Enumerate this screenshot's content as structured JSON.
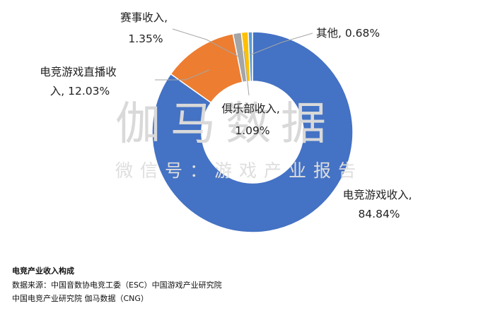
{
  "chart_data": {
    "type": "donut",
    "slices": [
      {
        "name": "电竞游戏收入",
        "value": 84.84,
        "label_lines": [
          "电竞游戏收入,",
          "84.84%"
        ],
        "color": "#4472C4"
      },
      {
        "name": "电竞游戏直播收入",
        "value": 12.03,
        "label_lines": [
          "电竞游戏直播收",
          "入, 12.03%"
        ],
        "color": "#ED7D31"
      },
      {
        "name": "赛事收入",
        "value": 1.35,
        "label_lines": [
          "赛事收入,",
          "1.35%"
        ],
        "color": "#A5A5A5"
      },
      {
        "name": "俱乐部收入",
        "value": 1.09,
        "label_lines": [
          "俱乐部收入,",
          "1.09%"
        ],
        "color": "#FFC000"
      },
      {
        "name": "其他",
        "value": 0.68,
        "label_lines": [
          "其他, 0.68%"
        ],
        "color": "#5B9BD5"
      }
    ],
    "legend": "none"
  },
  "watermark": {
    "line1": "伽马数据",
    "line2": "微信号：游戏产业报告"
  },
  "caption": {
    "title": "电竞产业收入构成",
    "line1": "数据来源：中国音数协电竞工委（ESC）中国游戏产业研究院",
    "line2": "中国电竞产业研究院 伽马数据（CNG）"
  }
}
